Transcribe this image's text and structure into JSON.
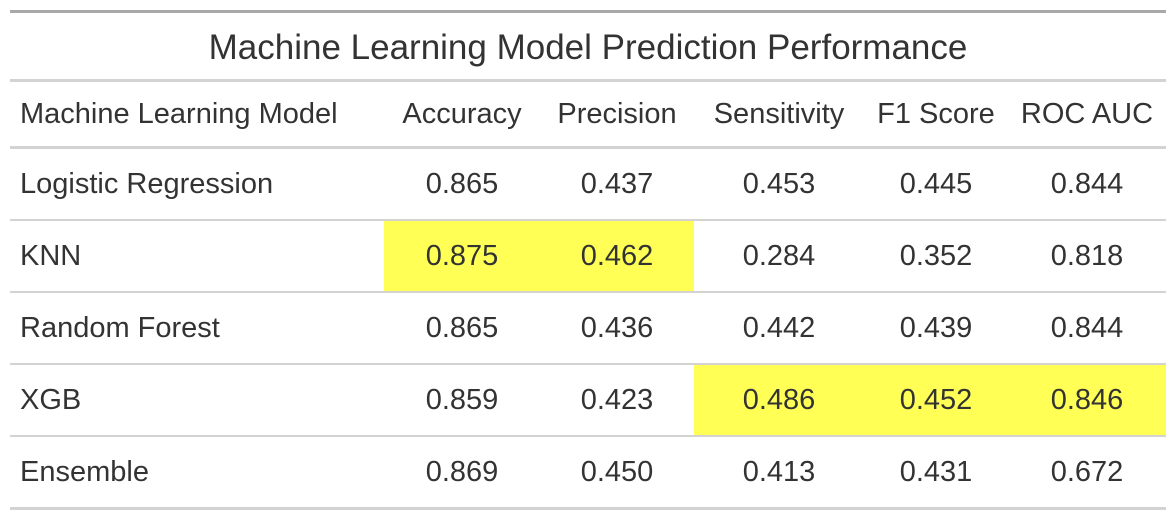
{
  "chart_data": {
    "type": "table",
    "title": "Machine Learning Model Prediction Performance",
    "columns": [
      "Machine Learning Model",
      "Accuracy",
      "Precision",
      "Sensitivity",
      "F1 Score",
      "ROC AUC"
    ],
    "rows": [
      {
        "model": "Logistic Regression",
        "values": [
          "0.865",
          "0.437",
          "0.453",
          "0.445",
          "0.844"
        ],
        "highlight": [
          false,
          false,
          false,
          false,
          false
        ]
      },
      {
        "model": "KNN",
        "values": [
          "0.875",
          "0.462",
          "0.284",
          "0.352",
          "0.818"
        ],
        "highlight": [
          true,
          true,
          false,
          false,
          false
        ]
      },
      {
        "model": "Random Forest",
        "values": [
          "0.865",
          "0.436",
          "0.442",
          "0.439",
          "0.844"
        ],
        "highlight": [
          false,
          false,
          false,
          false,
          false
        ]
      },
      {
        "model": "XGB",
        "values": [
          "0.859",
          "0.423",
          "0.486",
          "0.452",
          "0.846"
        ],
        "highlight": [
          false,
          false,
          true,
          true,
          true
        ]
      },
      {
        "model": "Ensemble",
        "values": [
          "0.869",
          "0.450",
          "0.413",
          "0.431",
          "0.672"
        ],
        "highlight": [
          false,
          false,
          false,
          false,
          false
        ]
      }
    ],
    "highlight_color": "#ffff55"
  }
}
